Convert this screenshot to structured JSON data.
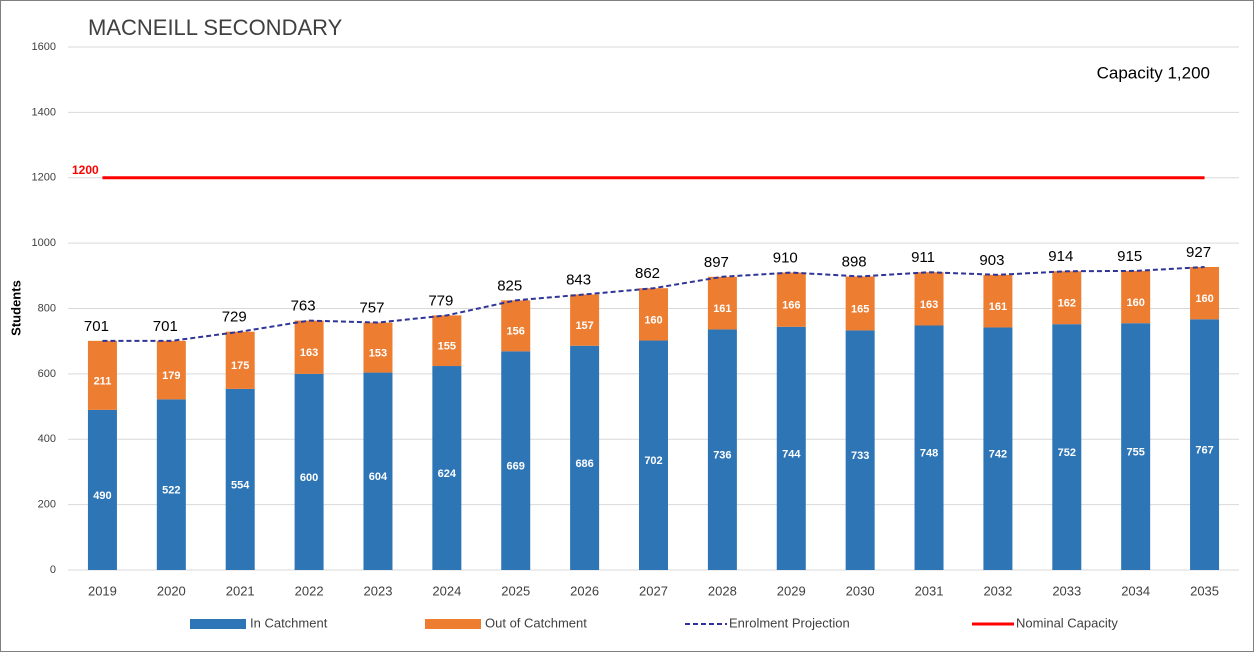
{
  "chart_data": {
    "type": "bar",
    "stacked": true,
    "title": "MACNEILL SECONDARY",
    "annotation": "Capacity 1,200",
    "y_label": "Students",
    "categories": [
      "2019",
      "2020",
      "2021",
      "2022",
      "2023",
      "2024",
      "2025",
      "2026",
      "2027",
      "2028",
      "2029",
      "2030",
      "2031",
      "2032",
      "2033",
      "2034",
      "2035"
    ],
    "series": [
      {
        "name": "In Catchment",
        "type": "bar",
        "color": "#2e75b6",
        "values": [
          490,
          522,
          554,
          600,
          604,
          624,
          669,
          686,
          702,
          736,
          744,
          733,
          748,
          742,
          752,
          755,
          767
        ]
      },
      {
        "name": "Out of Catchment",
        "type": "bar",
        "color": "#ed7d31",
        "values": [
          211,
          179,
          175,
          163,
          153,
          155,
          156,
          157,
          160,
          161,
          166,
          165,
          163,
          161,
          162,
          160,
          160
        ]
      },
      {
        "name": "Enrolment Projection",
        "type": "line",
        "dashed": true,
        "color": "#2f3597",
        "values": [
          701,
          701,
          729,
          763,
          757,
          779,
          825,
          843,
          862,
          897,
          910,
          898,
          911,
          903,
          914,
          915,
          927
        ]
      },
      {
        "name": "Nominal Capacity",
        "type": "line",
        "dashed": false,
        "color": "#ff0000",
        "label_first_only": true,
        "values": [
          1200,
          1200,
          1200,
          1200,
          1200,
          1200,
          1200,
          1200,
          1200,
          1200,
          1200,
          1200,
          1200,
          1200,
          1200,
          1200,
          1200
        ]
      }
    ],
    "ylim": [
      0,
      1600
    ],
    "yticks": [
      0,
      200,
      400,
      600,
      800,
      1000,
      1200,
      1400,
      1600
    ],
    "grid": true,
    "legend": "bottom"
  }
}
